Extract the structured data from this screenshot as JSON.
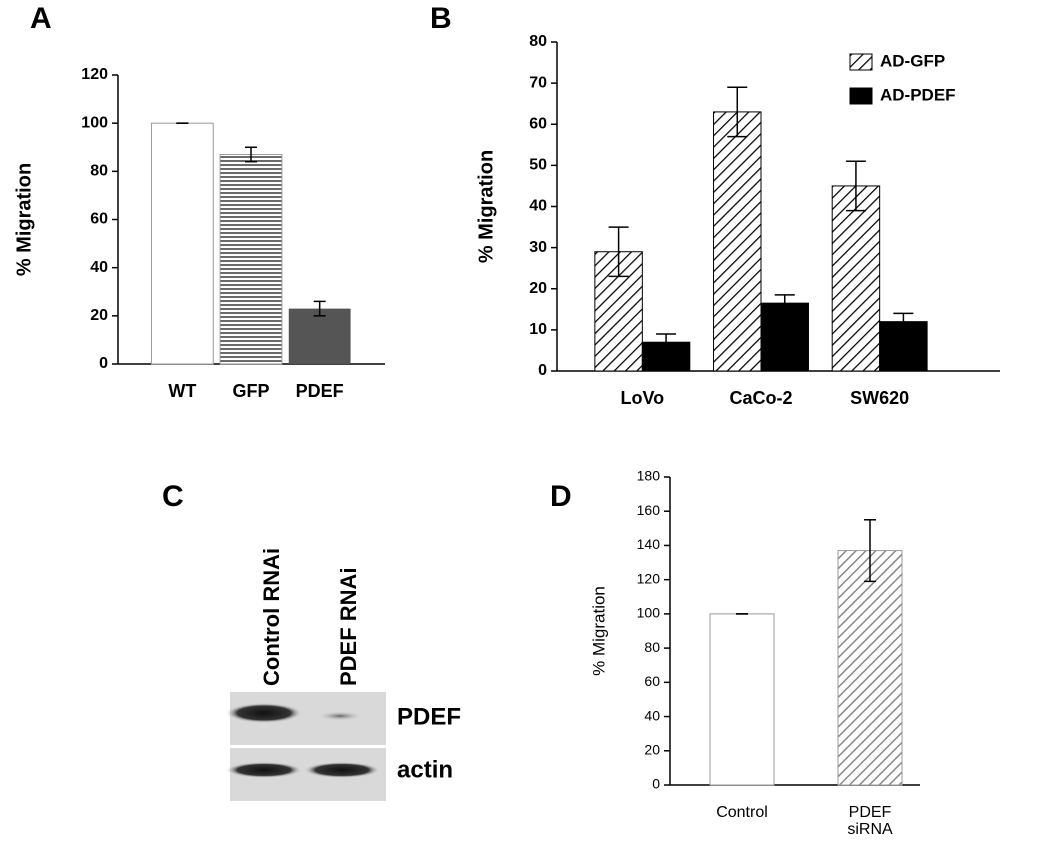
{
  "chart_data": [
    {
      "panel_label": "A",
      "type": "bar",
      "ylabel": "% Migration",
      "categories": [
        "WT",
        "GFP",
        "PDEF"
      ],
      "values": [
        100,
        87,
        23
      ],
      "errors": [
        0,
        3,
        3
      ],
      "colors": [
        "#ffffff",
        "#ffffff",
        "#555555"
      ],
      "patterns": [
        "none",
        "horizontal",
        "none"
      ],
      "ylim": [
        0,
        120
      ],
      "yticks": [
        0,
        20,
        40,
        60,
        80,
        100,
        120
      ]
    },
    {
      "panel_label": "B",
      "type": "grouped-bar",
      "ylabel": "% Migration",
      "categories": [
        "LoVo",
        "CaCo-2",
        "SW620"
      ],
      "series": [
        {
          "name": "AD-GFP",
          "color": "#ffffff",
          "pattern": "diagonal",
          "values": [
            29,
            63,
            45
          ],
          "errors": [
            6,
            6,
            6
          ]
        },
        {
          "name": "AD-PDEF",
          "color": "#000000",
          "pattern": "none",
          "values": [
            7,
            16.5,
            12
          ],
          "errors": [
            2,
            2,
            2
          ]
        }
      ],
      "ylim": [
        0,
        80
      ],
      "yticks": [
        0,
        10,
        20,
        30,
        40,
        50,
        60,
        70,
        80
      ],
      "legend": "top-right"
    },
    {
      "panel_label": "D",
      "type": "bar",
      "ylabel": "% Migration",
      "categories": [
        "Control",
        "PDEF siRNA"
      ],
      "values": [
        100,
        137
      ],
      "errors": [
        0,
        18
      ],
      "colors": [
        "#ffffff",
        "#ffffff"
      ],
      "patterns": [
        "none",
        "diagonal-gray"
      ],
      "ylim": [
        0,
        180
      ],
      "yticks": [
        0,
        20,
        40,
        60,
        80,
        100,
        120,
        140,
        160,
        180
      ]
    }
  ],
  "blot": {
    "panel_label": "C",
    "lanes": [
      "Control RNAi",
      "PDEF RNAi"
    ],
    "bands": [
      "PDEF",
      "actin"
    ]
  }
}
